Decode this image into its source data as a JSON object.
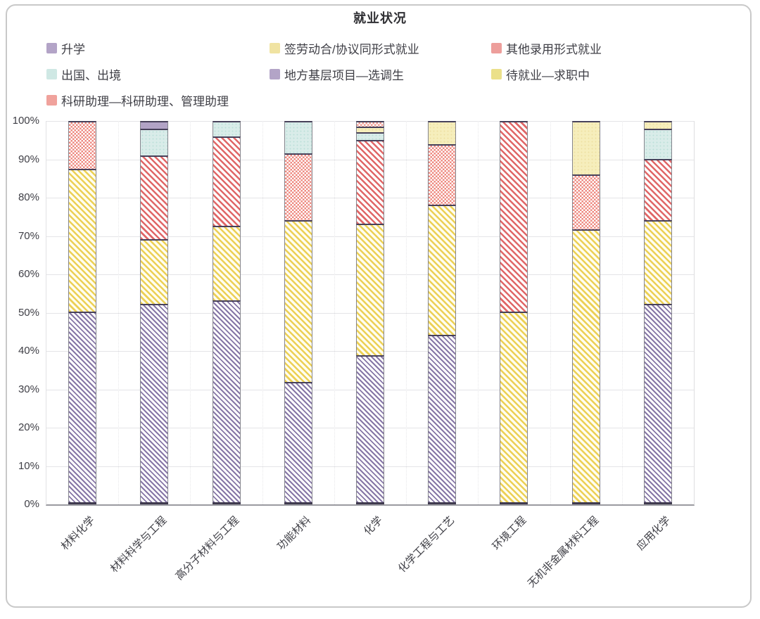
{
  "title": "就业状况",
  "legend": {
    "items": [
      {
        "key": "shengxue",
        "label": "升学",
        "color": "#b3a4c7"
      },
      {
        "key": "qianhetong",
        "label": "签劳动合/协议同形式就业",
        "color": "#f0e3a2"
      },
      {
        "key": "qita",
        "label": "其他录用形式就业",
        "color": "#ed9e9b"
      },
      {
        "key": "chuguo",
        "label": "出国、出境",
        "color": "#cfe8e4"
      },
      {
        "key": "jiceng",
        "label": "地方基层项目—选调生",
        "color": "#b3a4c7"
      },
      {
        "key": "daijiuye",
        "label": "待就业—求职中",
        "color": "#ebe08a"
      },
      {
        "key": "keyan",
        "label": "科研助理—科研助理、管理助理",
        "color": "#f0a29c"
      }
    ]
  },
  "y_axis": {
    "ticks": [
      "100%",
      "90%",
      "80%",
      "70%",
      "60%",
      "50%",
      "40%",
      "30%",
      "20%",
      "10%",
      "0%"
    ]
  },
  "chart_data": {
    "type": "bar",
    "stacked": true,
    "percent_stacked": true,
    "title": "就业状况",
    "ylabel": "",
    "xlabel": "",
    "ylim": [
      0,
      100
    ],
    "grid": true,
    "legend_position": "top",
    "categories": [
      "材料化学",
      "材料科学与工程",
      "高分子材料与工程",
      "功能材料",
      "化学",
      "化学工程与工艺",
      "环境工程",
      "无机非金属材料工程",
      "应用化学"
    ],
    "series": [
      {
        "name": "升学",
        "values": [
          50,
          52,
          53,
          31.5,
          38.5,
          44,
          0,
          0,
          52
        ]
      },
      {
        "name": "签劳动合/协议同形式就业",
        "values": [
          37.5,
          17,
          19.5,
          42.5,
          34.5,
          34,
          50,
          71.5,
          22
        ]
      },
      {
        "name": "其他录用形式就业",
        "values": [
          12.5,
          22,
          23.5,
          17.5,
          22,
          16,
          50,
          14.5,
          16
        ]
      },
      {
        "name": "出国、出境",
        "values": [
          0,
          7,
          4,
          8.5,
          2,
          0,
          0,
          0,
          8
        ]
      },
      {
        "name": "地方基层项目—选调生",
        "values": [
          0,
          2,
          0,
          0,
          0,
          0,
          0,
          0,
          0
        ]
      },
      {
        "name": "待就业—求职中",
        "values": [
          0,
          0,
          0,
          0,
          1.5,
          6,
          0,
          14,
          2
        ]
      },
      {
        "name": "科研助理—科研助理、管理助理",
        "values": [
          0,
          0,
          0,
          0,
          1.5,
          0,
          0,
          0,
          0
        ]
      }
    ],
    "layout_hints": {
      "other_employment_pattern_by_bar": [
        "check",
        "stripe",
        "stripe",
        "check",
        "stripe",
        "check",
        "stripe",
        "check",
        "stripe"
      ],
      "hatch_colors": {
        "shengxue": "#8676a6",
        "qianhetong": "#ecd055",
        "qita": "#e06767",
        "keyan": "#f09a90"
      }
    }
  }
}
